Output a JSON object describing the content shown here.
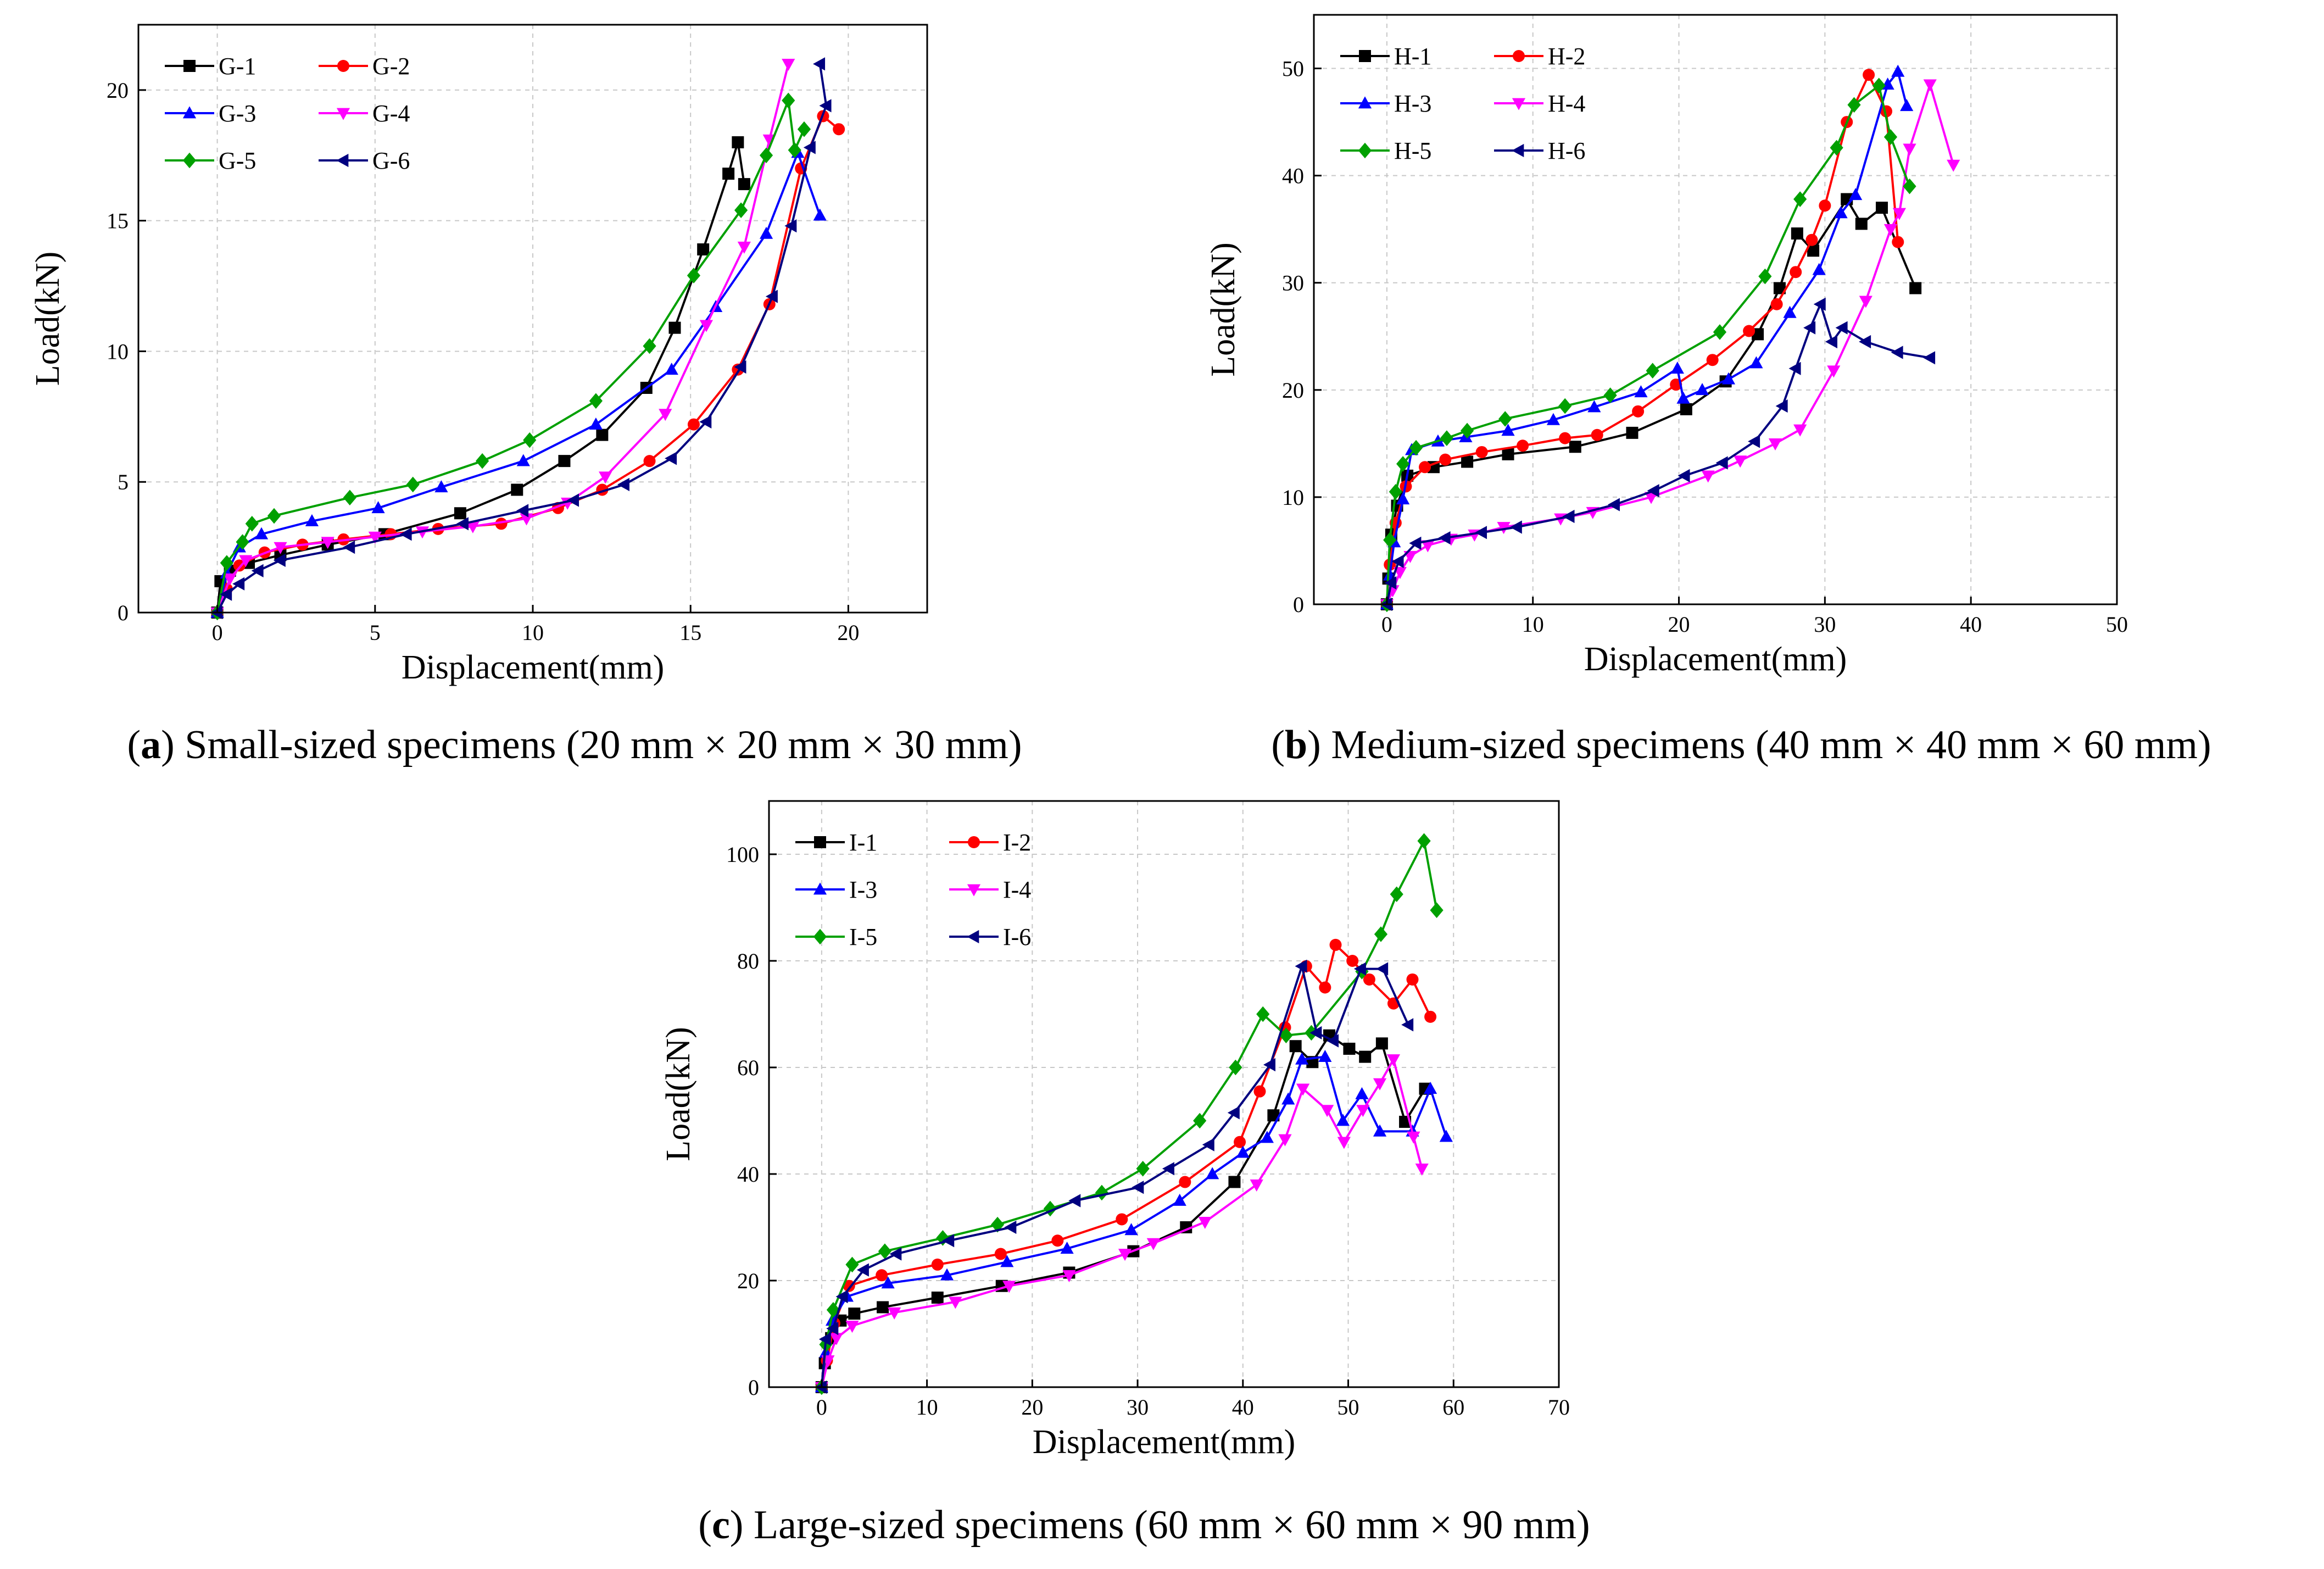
{
  "charts": [
    {
      "id": "a",
      "caption": {
        "letter": "a",
        "text": " Small-sized specimens (20 mm × 20 mm × 30 mm)"
      },
      "chart_data": {
        "type": "line",
        "xlabel": "Displacement(mm)",
        "ylabel": "Load(kN)",
        "xlim": [
          -2.5,
          22.5
        ],
        "ylim": [
          0,
          22.5
        ],
        "xticks": [
          0,
          5,
          10,
          15,
          20
        ],
        "yticks": [
          0,
          5,
          10,
          15,
          20
        ],
        "grid": true,
        "legend_position": "top-left",
        "series": [
          {
            "name": "G-1",
            "color": "#000000",
            "marker": "square",
            "x": [
              0,
              0.1,
              0.4,
              1.0,
              2.0,
              3.5,
              5.3,
              7.7,
              9.5,
              11.0,
              12.2,
              13.6,
              14.5,
              15.4,
              16.2,
              16.5,
              16.7
            ],
            "y": [
              0,
              1.2,
              1.6,
              1.9,
              2.2,
              2.6,
              3.0,
              3.8,
              4.7,
              5.8,
              6.8,
              8.6,
              10.9,
              13.9,
              16.8,
              18.0,
              16.4
            ]
          },
          {
            "name": "G-2",
            "color": "#ff0000",
            "marker": "circle",
            "x": [
              0,
              0.3,
              0.7,
              1.5,
              2.7,
              4.0,
              5.5,
              7.0,
              9.0,
              10.8,
              12.2,
              13.7,
              15.1,
              16.5,
              17.5,
              18.5,
              19.2,
              19.7
            ],
            "y": [
              0,
              0.9,
              1.8,
              2.3,
              2.6,
              2.8,
              3.0,
              3.2,
              3.4,
              4.0,
              4.7,
              5.8,
              7.2,
              9.3,
              11.8,
              17.0,
              19.0,
              18.5
            ]
          },
          {
            "name": "G-3",
            "color": "#0000ff",
            "marker": "triangle-up",
            "x": [
              0,
              0.3,
              0.7,
              1.4,
              3.0,
              5.1,
              7.1,
              9.7,
              12.0,
              14.4,
              15.8,
              17.4,
              18.4,
              19.1
            ],
            "y": [
              0,
              1.5,
              2.5,
              3.0,
              3.5,
              4.0,
              4.8,
              5.8,
              7.2,
              9.3,
              11.7,
              14.5,
              17.6,
              15.2
            ]
          },
          {
            "name": "G-4",
            "color": "#ff00ff",
            "marker": "triangle-down",
            "x": [
              0,
              0.4,
              0.9,
              2.0,
              3.5,
              5.0,
              6.5,
              8.1,
              9.8,
              11.1,
              12.3,
              14.2,
              15.5,
              16.7,
              17.5,
              18.1
            ],
            "y": [
              0,
              1.3,
              2.0,
              2.5,
              2.7,
              2.9,
              3.1,
              3.3,
              3.6,
              4.2,
              5.2,
              7.6,
              11.0,
              14.0,
              18.1,
              21.0
            ]
          },
          {
            "name": "G-5",
            "color": "#00a000",
            "marker": "diamond",
            "x": [
              0,
              0.3,
              0.8,
              1.1,
              1.8,
              4.2,
              6.2,
              8.4,
              9.9,
              12.0,
              13.7,
              15.1,
              16.6,
              17.4,
              18.1,
              18.3,
              18.6
            ],
            "y": [
              0,
              1.9,
              2.7,
              3.4,
              3.7,
              4.4,
              4.9,
              5.8,
              6.6,
              8.1,
              10.2,
              12.9,
              15.4,
              17.5,
              19.6,
              17.7,
              18.5
            ]
          },
          {
            "name": "G-6",
            "color": "#000080",
            "marker": "triangle-left",
            "x": [
              0,
              0.3,
              0.7,
              1.3,
              2.0,
              4.2,
              6.0,
              7.8,
              9.7,
              11.3,
              12.9,
              14.4,
              15.5,
              16.6,
              17.6,
              18.2,
              18.8,
              19.3,
              19.1
            ],
            "y": [
              0,
              0.7,
              1.1,
              1.6,
              2.0,
              2.5,
              3.0,
              3.4,
              3.9,
              4.3,
              4.9,
              5.9,
              7.3,
              9.4,
              12.1,
              14.8,
              17.8,
              19.4,
              21.0
            ]
          }
        ]
      }
    },
    {
      "id": "b",
      "caption": {
        "letter": "b",
        "text": " Medium-sized specimens (40 mm × 40 mm × 60 mm)"
      },
      "chart_data": {
        "type": "line",
        "xlabel": "Displacement(mm)",
        "ylabel": "Load(kN)",
        "xlim": [
          -5,
          50
        ],
        "ylim": [
          0,
          55
        ],
        "xticks": [
          0,
          10,
          20,
          30,
          40,
          50
        ],
        "yticks": [
          0,
          10,
          20,
          30,
          40,
          50
        ],
        "grid": true,
        "legend_position": "top-left",
        "series": [
          {
            "name": "H-1",
            "color": "#000000",
            "marker": "square",
            "x": [
              0,
              0.1,
              0.3,
              0.7,
              1.4,
              3.2,
              5.5,
              8.3,
              12.9,
              16.8,
              20.5,
              23.2,
              25.4,
              26.9,
              28.1,
              29.2,
              31.5,
              32.5,
              33.9,
              36.2
            ],
            "y": [
              0,
              2.4,
              6.5,
              9.2,
              12.0,
              12.8,
              13.3,
              14.0,
              14.7,
              16.0,
              18.2,
              20.8,
              25.2,
              29.5,
              34.6,
              33.0,
              37.8,
              35.5,
              37.0,
              29.5
            ]
          },
          {
            "name": "H-2",
            "color": "#ff0000",
            "marker": "circle",
            "x": [
              0,
              0.2,
              0.6,
              1.3,
              2.6,
              4.0,
              6.5,
              9.3,
              12.2,
              14.4,
              17.2,
              19.8,
              22.3,
              24.8,
              26.7,
              28.0,
              29.1,
              30.0,
              31.5,
              33.0,
              34.2,
              35.0
            ],
            "y": [
              0,
              3.7,
              7.6,
              11.0,
              12.8,
              13.5,
              14.2,
              14.8,
              15.5,
              15.8,
              18.0,
              20.5,
              22.8,
              25.5,
              28.0,
              31.0,
              34.0,
              37.2,
              45.0,
              49.4,
              46.0,
              33.8
            ]
          },
          {
            "name": "H-3",
            "color": "#0000ff",
            "marker": "triangle-up",
            "x": [
              0,
              0.2,
              0.5,
              1.1,
              1.7,
              3.5,
              5.4,
              8.3,
              11.4,
              14.2,
              17.4,
              19.9,
              20.3,
              21.6,
              23.4,
              25.3,
              27.6,
              29.6,
              31.1,
              32.1,
              34.3,
              35.0,
              35.6
            ],
            "y": [
              0,
              2.7,
              5.8,
              9.8,
              14.4,
              15.2,
              15.6,
              16.2,
              17.2,
              18.4,
              19.8,
              22.0,
              19.2,
              20.0,
              21.0,
              22.5,
              27.2,
              31.2,
              36.5,
              38.2,
              48.5,
              49.7,
              46.5
            ]
          },
          {
            "name": "H-4",
            "color": "#ff00ff",
            "marker": "triangle-down",
            "x": [
              0,
              0.4,
              0.9,
              1.6,
              2.8,
              4.4,
              6.0,
              8.0,
              11.9,
              14.1,
              18.1,
              22.0,
              24.2,
              26.6,
              28.3,
              30.6,
              32.8,
              34.5,
              35.1,
              35.8,
              37.2,
              38.8
            ],
            "y": [
              0,
              1.3,
              3.0,
              4.5,
              5.5,
              6.1,
              6.5,
              7.2,
              8.0,
              8.6,
              10.0,
              12.0,
              13.4,
              15.0,
              16.3,
              21.8,
              28.3,
              35.0,
              36.5,
              42.5,
              48.5,
              41.0
            ]
          },
          {
            "name": "H-5",
            "color": "#00a000",
            "marker": "diamond",
            "x": [
              0,
              0.2,
              0.6,
              1.1,
              2.0,
              4.1,
              5.5,
              8.1,
              12.2,
              15.3,
              18.2,
              22.8,
              25.9,
              28.3,
              30.8,
              32.0,
              33.7,
              34.5,
              35.8
            ],
            "y": [
              0,
              6.0,
              10.5,
              13.1,
              14.6,
              15.5,
              16.2,
              17.3,
              18.5,
              19.5,
              21.8,
              25.4,
              30.6,
              37.8,
              42.6,
              46.6,
              48.4,
              43.6,
              39.0
            ]
          },
          {
            "name": "H-6",
            "color": "#000080",
            "marker": "triangle-left",
            "x": [
              0,
              0.3,
              0.8,
              2.0,
              4.0,
              6.5,
              8.9,
              12.5,
              15.6,
              18.3,
              20.4,
              23.0,
              25.2,
              27.1,
              28.0,
              29.0,
              29.7,
              30.5,
              31.2,
              32.8,
              35.0,
              37.2
            ],
            "y": [
              0,
              2.0,
              4.0,
              5.7,
              6.2,
              6.7,
              7.2,
              8.2,
              9.3,
              10.6,
              12.0,
              13.2,
              15.2,
              18.5,
              22.0,
              25.8,
              28.0,
              24.5,
              25.8,
              24.5,
              23.5,
              23.0
            ]
          }
        ]
      }
    },
    {
      "id": "c",
      "caption": {
        "letter": "c",
        "text": " Large-sized specimens (60 mm × 60 mm × 90 mm)"
      },
      "chart_data": {
        "type": "line",
        "xlabel": "Displacement(mm)",
        "ylabel": "Load(kN)",
        "xlim": [
          -5,
          70
        ],
        "ylim": [
          0,
          110
        ],
        "xticks": [
          0,
          10,
          20,
          30,
          40,
          50,
          60,
          70
        ],
        "yticks": [
          0,
          20,
          40,
          60,
          80,
          100
        ],
        "grid": true,
        "legend_position": "top-left",
        "series": [
          {
            "name": "I-1",
            "color": "#000000",
            "marker": "square",
            "x": [
              0,
              0.3,
              0.9,
              1.8,
              3.1,
              5.8,
              11.0,
              17.1,
              23.5,
              29.6,
              34.6,
              39.2,
              42.9,
              45.0,
              46.6,
              48.2,
              50.1,
              51.6,
              53.2,
              55.4,
              57.3
            ],
            "y": [
              0,
              4.5,
              9.2,
              12.5,
              13.8,
              15.0,
              16.8,
              19.0,
              21.5,
              25.5,
              30.0,
              38.5,
              51.0,
              64.0,
              61.0,
              66.0,
              63.5,
              62.0,
              64.5,
              49.8,
              56.0
            ]
          },
          {
            "name": "I-2",
            "color": "#ff0000",
            "marker": "circle",
            "x": [
              0,
              0.5,
              1.2,
              2.6,
              5.7,
              11.0,
              17.0,
              22.4,
              28.5,
              34.5,
              39.7,
              41.6,
              44.0,
              46.0,
              47.8,
              48.8,
              50.4,
              52.0,
              54.3,
              56.1,
              57.8
            ],
            "y": [
              0,
              5.0,
              12.0,
              19.0,
              21.0,
              23.0,
              25.0,
              27.5,
              31.5,
              38.5,
              46.0,
              55.5,
              67.5,
              79.0,
              75.0,
              83.0,
              80.0,
              76.5,
              72.0,
              76.5,
              69.5
            ]
          },
          {
            "name": "I-3",
            "color": "#0000ff",
            "marker": "triangle-up",
            "x": [
              0,
              0.4,
              1.0,
              2.4,
              6.3,
              11.9,
              17.6,
              23.3,
              29.4,
              34.0,
              37.1,
              40.0,
              42.3,
              44.3,
              45.6,
              47.8,
              49.5,
              51.3,
              53.0,
              56.1,
              57.8,
              59.3
            ],
            "y": [
              0,
              6.5,
              12.5,
              17.0,
              19.5,
              21.0,
              23.5,
              26.0,
              29.5,
              35.0,
              40.0,
              44.0,
              46.8,
              54.0,
              61.5,
              62.0,
              50.0,
              55.0,
              48.0,
              48.0,
              56.0,
              47.0
            ]
          },
          {
            "name": "I-4",
            "color": "#ff00ff",
            "marker": "triangle-down",
            "x": [
              0,
              0.6,
              1.4,
              2.9,
              6.9,
              12.7,
              17.8,
              23.5,
              28.8,
              31.5,
              36.4,
              41.3,
              44.0,
              45.7,
              48.0,
              49.6,
              51.4,
              53.0,
              54.3,
              56.2,
              57.0
            ],
            "y": [
              0,
              5.0,
              9.2,
              11.5,
              14.0,
              16.0,
              19.0,
              21.0,
              25.0,
              27.0,
              31.0,
              38.0,
              46.5,
              56.0,
              52.0,
              46.0,
              52.0,
              57.0,
              61.5,
              47.0,
              41.0
            ]
          },
          {
            "name": "I-5",
            "color": "#00a000",
            "marker": "diamond",
            "x": [
              0,
              0.4,
              1.1,
              2.9,
              6.0,
              11.5,
              16.7,
              21.7,
              26.6,
              30.5,
              35.9,
              39.3,
              41.9,
              44.1,
              46.5,
              51.3,
              53.1,
              54.6,
              57.2,
              58.4
            ],
            "y": [
              0,
              8.0,
              14.5,
              23.0,
              25.5,
              28.0,
              30.5,
              33.5,
              36.5,
              41.0,
              50.0,
              60.0,
              70.0,
              66.0,
              66.5,
              78.0,
              85.0,
              92.5,
              102.5,
              89.5
            ]
          },
          {
            "name": "I-6",
            "color": "#000080",
            "marker": "triangle-left",
            "x": [
              0,
              0.4,
              1.1,
              2.0,
              4.0,
              7.1,
              12.1,
              18.0,
              24.1,
              30.1,
              33.0,
              36.8,
              39.2,
              42.6,
              45.6,
              47.0,
              48.6,
              51.2,
              53.3,
              55.7
            ],
            "y": [
              0,
              9.0,
              11.0,
              17.0,
              22.0,
              25.0,
              27.5,
              30.0,
              35.0,
              37.5,
              41.0,
              45.5,
              51.5,
              60.5,
              79.0,
              66.5,
              65.0,
              78.5,
              78.5,
              68.0
            ]
          }
        ]
      }
    }
  ]
}
